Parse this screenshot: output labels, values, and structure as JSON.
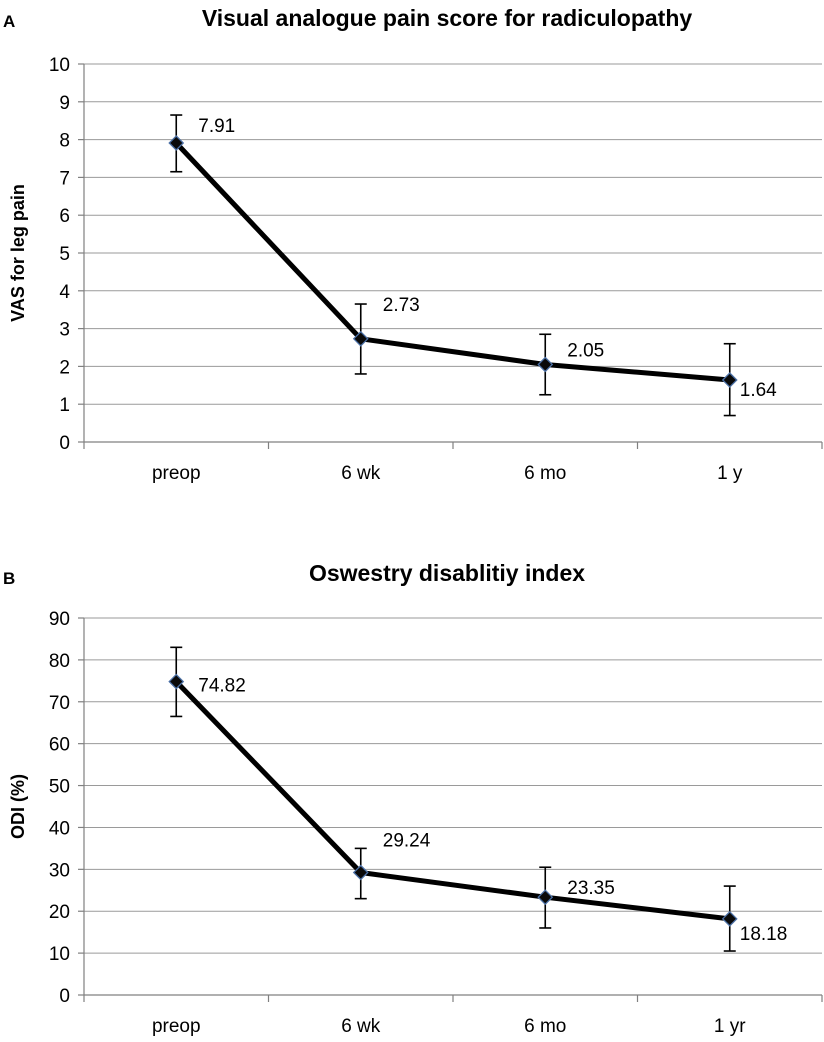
{
  "chart_data": [
    {
      "type": "line",
      "panel": "A",
      "title": "Visual analogue pain score for radiculopathy",
      "xlabel": "",
      "ylabel": "VAS for leg pain",
      "categories": [
        "preop",
        "6 wk",
        "6 mo",
        "1 y"
      ],
      "series": [
        {
          "name": "VAS for leg pain",
          "values": [
            7.91,
            2.73,
            2.05,
            1.64
          ],
          "labels": [
            "7.91",
            "2.73",
            "2.05",
            "1.64"
          ],
          "error_low": [
            7.15,
            1.8,
            1.25,
            0.7
          ],
          "error_high": [
            8.65,
            3.65,
            2.85,
            2.6
          ]
        }
      ],
      "ylim": [
        0,
        10
      ],
      "yticks": [
        0,
        1,
        2,
        3,
        4,
        5,
        6,
        7,
        8,
        9,
        10
      ],
      "grid": true,
      "legend": "none"
    },
    {
      "type": "line",
      "panel": "B",
      "title": "Oswestry disablitiy index",
      "xlabel": "",
      "ylabel": "ODI (%)",
      "categories": [
        "preop",
        "6 wk",
        "6 mo",
        "1 yr"
      ],
      "series": [
        {
          "name": "ODI (%)",
          "values": [
            74.82,
            29.24,
            23.35,
            18.18
          ],
          "labels": [
            "74.82",
            "29.24",
            "23.35",
            "18.18"
          ],
          "error_low": [
            66.5,
            23,
            16,
            10.5
          ],
          "error_high": [
            83,
            35,
            30.5,
            26
          ]
        }
      ],
      "ylim": [
        0,
        90
      ],
      "yticks": [
        0,
        10,
        20,
        30,
        40,
        50,
        60,
        70,
        80,
        90
      ],
      "grid": true,
      "legend": "none"
    }
  ]
}
